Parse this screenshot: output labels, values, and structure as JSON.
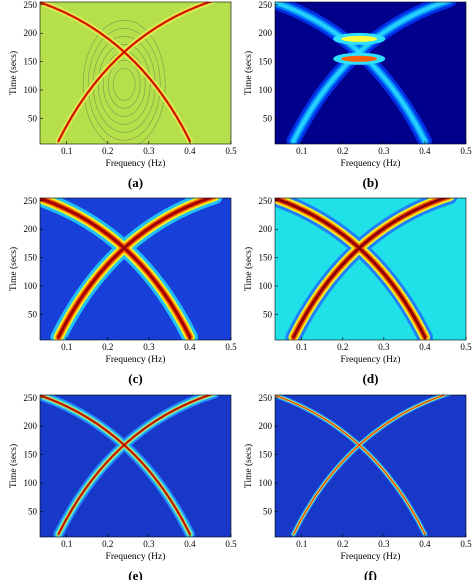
{
  "panels": [
    {
      "caption": "(a)",
      "x_label": "Frequency (Hz)",
      "y_label": "Time (secs)",
      "xlim": [
        0.035,
        0.5
      ],
      "ylim": [
        5,
        255
      ],
      "xticks": [
        0.1,
        0.2,
        0.3,
        0.4,
        0.5
      ],
      "yticks": [
        50,
        100,
        150,
        200,
        250
      ]
    },
    {
      "caption": "(b)",
      "x_label": "Frequency (Hz)",
      "y_label": "Time (secs)",
      "xlim": [
        0.035,
        0.5
      ],
      "ylim": [
        5,
        255
      ],
      "xticks": [
        0.1,
        0.2,
        0.3,
        0.4,
        0.5
      ],
      "yticks": [
        50,
        100,
        150,
        200,
        250
      ]
    },
    {
      "caption": "(c)",
      "x_label": "Frequency (Hz)",
      "y_label": "Time (secs)",
      "xlim": [
        0.035,
        0.5
      ],
      "ylim": [
        5,
        255
      ],
      "xticks": [
        0.1,
        0.2,
        0.3,
        0.4,
        0.5
      ],
      "yticks": [
        50,
        100,
        150,
        200,
        250
      ]
    },
    {
      "caption": "(d)",
      "x_label": "Frequency (Hz)",
      "y_label": "Time (secs)",
      "xlim": [
        0.035,
        0.5
      ],
      "ylim": [
        5,
        255
      ],
      "xticks": [
        0.1,
        0.2,
        0.3,
        0.4,
        0.5
      ],
      "yticks": [
        50,
        100,
        150,
        200,
        250
      ]
    },
    {
      "caption": "(e)",
      "x_label": "Frequency (Hz)",
      "y_label": "Time (secs)",
      "xlim": [
        0.035,
        0.5
      ],
      "ylim": [
        5,
        255
      ],
      "xticks": [
        0.1,
        0.2,
        0.3,
        0.4,
        0.5
      ],
      "yticks": [
        50,
        100,
        150,
        200,
        250
      ]
    },
    {
      "caption": "(f)",
      "x_label": "Frequency (Hz)",
      "y_label": "Time (secs)",
      "xlim": [
        0.035,
        0.5
      ],
      "ylim": [
        5,
        255
      ],
      "xticks": [
        0.1,
        0.2,
        0.3,
        0.4,
        0.5
      ],
      "yticks": [
        50,
        100,
        150,
        200,
        250
      ]
    }
  ]
}
